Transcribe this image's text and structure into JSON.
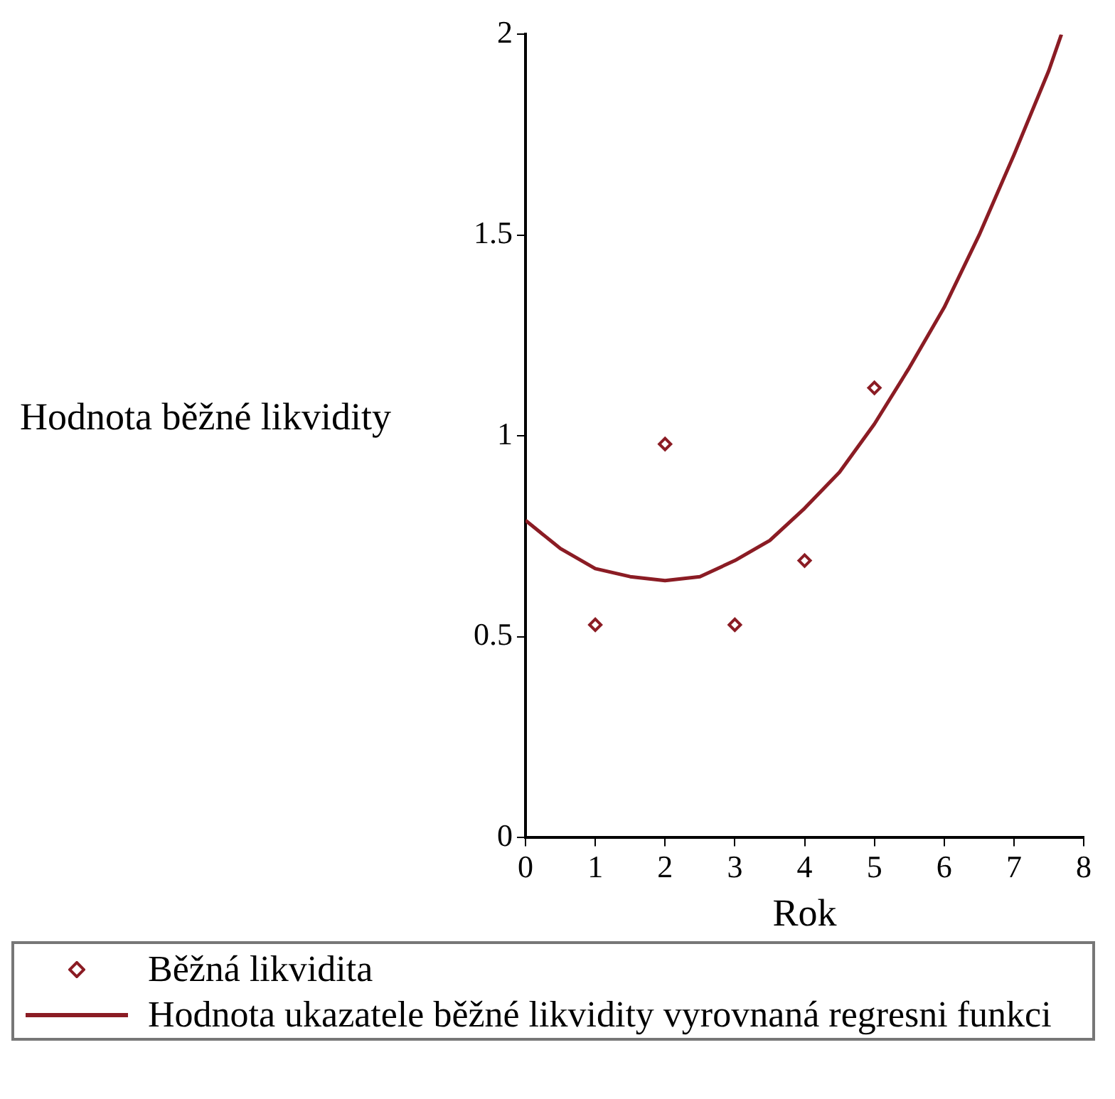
{
  "chart_data": {
    "type": "scatter",
    "xlabel": "Rok",
    "ylabel": "Hodnota běžné likvidity",
    "xlim": [
      0,
      8
    ],
    "ylim": [
      0,
      2
    ],
    "xticks": [
      0,
      1,
      2,
      3,
      4,
      5,
      6,
      7,
      8
    ],
    "yticks": [
      0,
      0.5,
      1,
      1.5,
      2
    ],
    "grid": false,
    "legend": "bottom",
    "marker": "diamond",
    "series": [
      {
        "name": "Běžná likvidita",
        "color": "#8b1c24",
        "x": [
          1,
          2,
          3,
          4,
          5
        ],
        "values": [
          0.53,
          0.98,
          0.53,
          0.69,
          1.12
        ]
      },
      {
        "name": "Hodnota ukazatele běžné likvidity vyrovnaná regresni funkci",
        "type": "line",
        "color": "#8b1c24",
        "marker": "none",
        "line_style": "solid",
        "x": [
          0,
          0.5,
          1,
          1.5,
          2,
          2.5,
          3,
          3.5,
          4,
          4.5,
          5,
          5.5,
          6,
          6.5,
          7,
          7.5,
          7.68
        ],
        "values": [
          0.79,
          0.72,
          0.67,
          0.65,
          0.64,
          0.65,
          0.69,
          0.74,
          0.82,
          0.91,
          1.03,
          1.17,
          1.32,
          1.5,
          1.7,
          1.91,
          2.0
        ]
      }
    ]
  }
}
